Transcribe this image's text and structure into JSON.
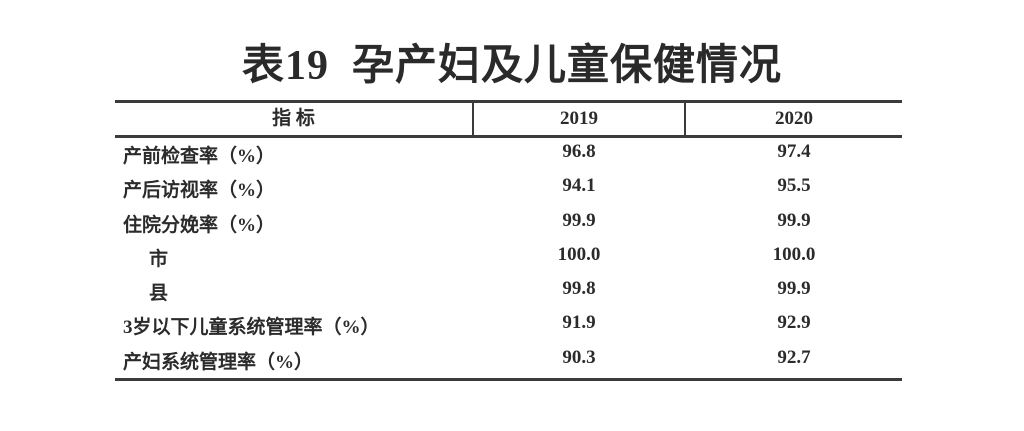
{
  "title": "表19  孕产妇及儿童保健情况",
  "table": {
    "columns": [
      "指 标",
      "2019",
      "2020"
    ],
    "rows": [
      {
        "label": "产前检查率（%）",
        "values": [
          "96.8",
          "97.4"
        ]
      },
      {
        "label": "产后访视率（%）",
        "values": [
          "94.1",
          "95.5"
        ]
      },
      {
        "label": "住院分娩率（%）",
        "values": [
          "99.9",
          "99.9"
        ]
      },
      {
        "label": "市",
        "values": [
          "100.0",
          "100.0"
        ]
      },
      {
        "label": "县",
        "values": [
          "99.8",
          "99.9"
        ]
      },
      {
        "label": "3岁以下儿童系统管理率（%）",
        "values": [
          "91.9",
          "92.9"
        ]
      },
      {
        "label": "产妇系统管理率（%）",
        "values": [
          "90.3",
          "92.7"
        ]
      }
    ]
  },
  "colors": {
    "text": "#2b2b2b",
    "rule": "#3b3b3b",
    "background": "#ffffff"
  }
}
